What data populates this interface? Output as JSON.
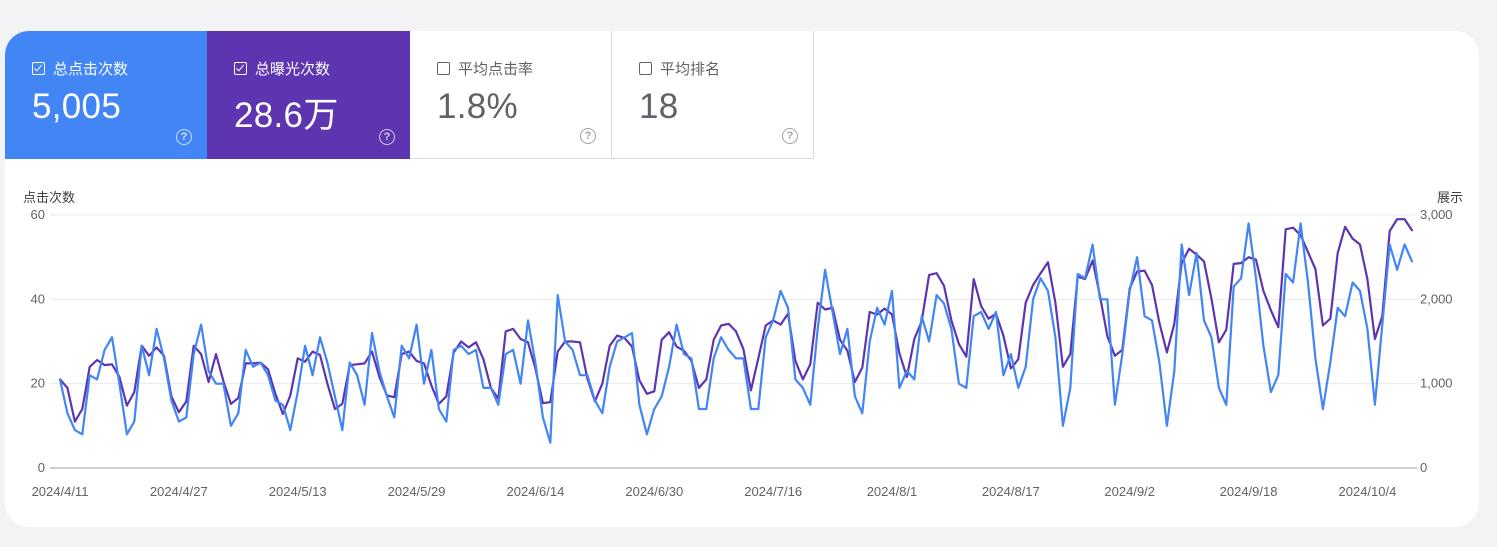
{
  "metrics": [
    {
      "label": "总点击次数",
      "value": "5,005",
      "checked": true
    },
    {
      "label": "总曝光次数",
      "value": "28.6万",
      "checked": true
    },
    {
      "label": "平均点击率",
      "value": "1.8%",
      "checked": false
    },
    {
      "label": "平均排名",
      "value": "18",
      "checked": false
    }
  ],
  "help_glyph": "?",
  "colors": {
    "clicks": "#4285f4",
    "impressions": "#5e35b1",
    "grid": "#e8eaed"
  },
  "chart_data": {
    "type": "line",
    "ylabel_left": "点击次数",
    "ylabel_right": "展示",
    "ylim_left": [
      0,
      60
    ],
    "ylim_right": [
      0,
      3000
    ],
    "left_ticks": [
      "0",
      "20",
      "40",
      "60"
    ],
    "right_ticks": [
      "0",
      "1,000",
      "2,000",
      "3,000"
    ],
    "x_ticks": [
      "2024/4/11",
      "2024/4/27",
      "2024/5/13",
      "2024/5/29",
      "2024/6/14",
      "2024/6/30",
      "2024/7/16",
      "2024/8/1",
      "2024/8/17",
      "2024/9/2",
      "2024/9/18",
      "2024/10/4"
    ],
    "grid": true,
    "series": [
      {
        "name": "点击次数",
        "axis": "left",
        "values": [
          21,
          13,
          9,
          8,
          22,
          21,
          28,
          31,
          20,
          8,
          11,
          29,
          22,
          33,
          26,
          16,
          11,
          12,
          27,
          34,
          23,
          20,
          20,
          10,
          13,
          28,
          24,
          25,
          22,
          16,
          15,
          9,
          18,
          29,
          22,
          31,
          25,
          17,
          9,
          25,
          22,
          15,
          32,
          23,
          17,
          12,
          29,
          26,
          34,
          20,
          28,
          14,
          11,
          28,
          29,
          27,
          28,
          19,
          19,
          15,
          27,
          28,
          20,
          35,
          25,
          12,
          6,
          41,
          30,
          28,
          22,
          22,
          16,
          13,
          24,
          30,
          31,
          32,
          15,
          8,
          14,
          17,
          24,
          34,
          27,
          26,
          14,
          14,
          26,
          31,
          28,
          26,
          26,
          14,
          14,
          31,
          35,
          42,
          38,
          21,
          19,
          15,
          33,
          47,
          37,
          27,
          33,
          17,
          13,
          30,
          38,
          34,
          42,
          19,
          23,
          21,
          36,
          30,
          41,
          39,
          33,
          20,
          19,
          36,
          37,
          33,
          37,
          22,
          27,
          19,
          24,
          40,
          45,
          42,
          31,
          10,
          19,
          46,
          45,
          53,
          40,
          40,
          15,
          27,
          42,
          50,
          36,
          35,
          25,
          10,
          23,
          53,
          41,
          51,
          35,
          31,
          19,
          15,
          43,
          45,
          58,
          45,
          29,
          18,
          22,
          46,
          44,
          58,
          44,
          26,
          14,
          25,
          38,
          36,
          44,
          42,
          33,
          15,
          34,
          53,
          47,
          53,
          49
        ]
      },
      {
        "name": "展示",
        "axis": "right",
        "values": [
          1050,
          950,
          550,
          700,
          1200,
          1280,
          1220,
          1230,
          1080,
          740,
          900,
          1450,
          1330,
          1430,
          1330,
          850,
          660,
          790,
          1450,
          1350,
          1020,
          1350,
          1030,
          760,
          830,
          1240,
          1240,
          1250,
          1170,
          880,
          640,
          860,
          1300,
          1260,
          1380,
          1340,
          1000,
          700,
          760,
          1220,
          1230,
          1240,
          1380,
          1080,
          860,
          840,
          1350,
          1380,
          1270,
          1240,
          980,
          760,
          850,
          1370,
          1500,
          1430,
          1490,
          1290,
          950,
          820,
          1620,
          1650,
          1530,
          1490,
          1180,
          770,
          780,
          1380,
          1500,
          1500,
          1490,
          1060,
          790,
          1000,
          1450,
          1570,
          1540,
          1440,
          1040,
          880,
          910,
          1520,
          1610,
          1440,
          1390,
          1270,
          950,
          1050,
          1520,
          1690,
          1710,
          1620,
          1410,
          920,
          1300,
          1690,
          1750,
          1700,
          1830,
          1270,
          1050,
          1230,
          1960,
          1880,
          1900,
          1520,
          1390,
          1020,
          1190,
          1850,
          1820,
          1890,
          1820,
          1360,
          1080,
          1530,
          1740,
          2290,
          2310,
          2160,
          1750,
          1470,
          1320,
          2240,
          1920,
          1770,
          1830,
          1570,
          1180,
          1290,
          1960,
          2170,
          2310,
          2440,
          1960,
          1200,
          1350,
          2270,
          2240,
          2460,
          2040,
          1560,
          1330,
          1400,
          2130,
          2330,
          2340,
          2170,
          1720,
          1370,
          1710,
          2430,
          2600,
          2530,
          2450,
          2010,
          1490,
          1640,
          2420,
          2430,
          2500,
          2470,
          2100,
          1870,
          1670,
          2830,
          2850,
          2760,
          2560,
          2360,
          1690,
          1770,
          2550,
          2860,
          2720,
          2650,
          2240,
          1530,
          1800,
          2810,
          2950,
          2950,
          2820
        ]
      }
    ]
  }
}
